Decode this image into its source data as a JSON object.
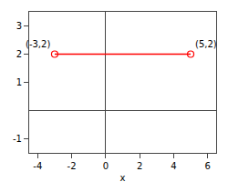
{
  "chart_data": {
    "type": "line",
    "x": [
      -3,
      5
    ],
    "values": [
      2,
      2
    ],
    "color": "#ff0000",
    "marker": "open circle",
    "line_style": "solid",
    "xlabel": "x",
    "xlim": [
      -4.5,
      6.5
    ],
    "xticks": [
      -4,
      -2,
      0,
      2,
      4,
      6
    ],
    "ylim": [
      -1.5,
      3.5
    ],
    "yticks": [
      -1,
      1,
      2,
      3
    ],
    "annotations": [
      {
        "text": "(-3,2)",
        "x": -3,
        "y": 2
      },
      {
        "text": "(5,2)",
        "x": 5,
        "y": 2
      }
    ],
    "grid": false
  }
}
